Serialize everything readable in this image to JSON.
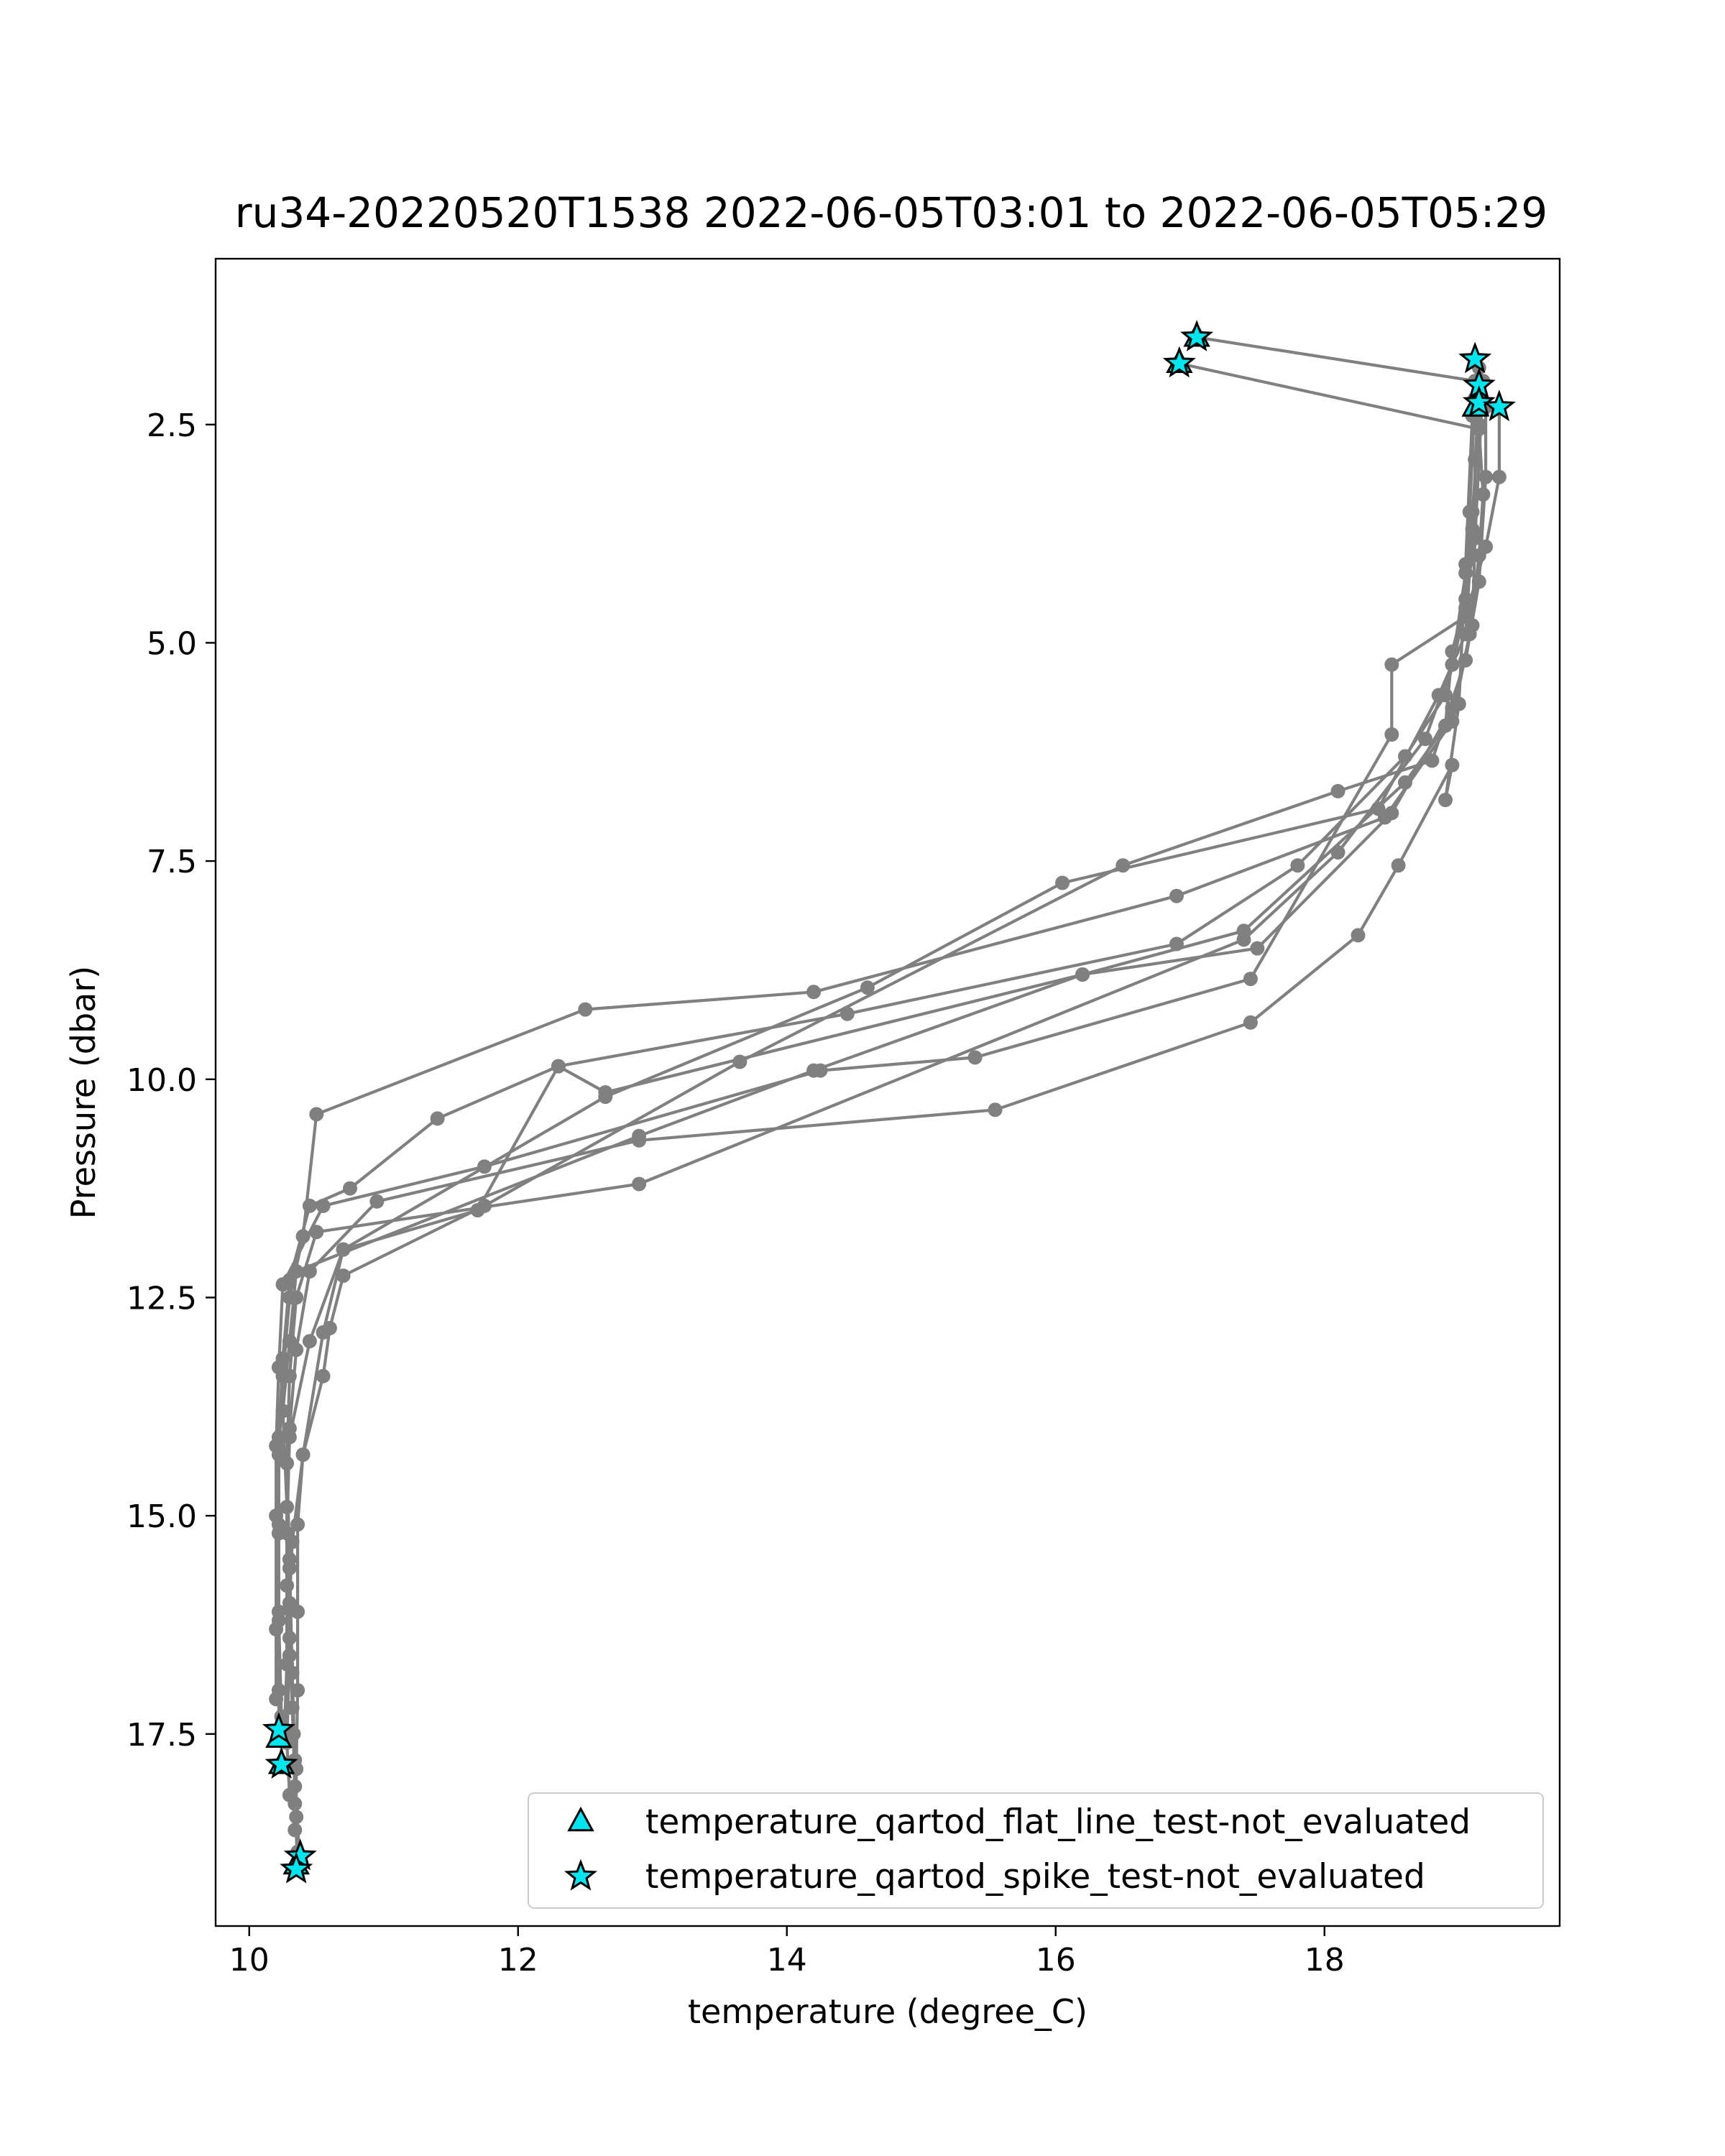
{
  "chart_data": {
    "type": "scatter",
    "title": "ru34-20220520T1538 2022-06-05T03:01 to 2022-06-05T05:29",
    "xlabel": "temperature (degree_C)",
    "ylabel": "Pressure (dbar)",
    "xlim": [
      9.75,
      19.75
    ],
    "ylim": [
      19.7,
      0.6
    ],
    "y_inverted": true,
    "x_ticks": [
      10,
      12,
      14,
      16,
      18
    ],
    "x_tick_labels": [
      "10",
      "12",
      "14",
      "16",
      "18"
    ],
    "y_ticks": [
      2.5,
      5.0,
      7.5,
      10.0,
      12.5,
      15.0,
      17.5
    ],
    "y_tick_labels": [
      "2.5",
      "5.0",
      "7.5",
      "10.0",
      "12.5",
      "15.0",
      "17.5"
    ],
    "grid": false,
    "legend_position": "bottom-right",
    "colors": {
      "profile": "#808080",
      "flag_fill": "#00e5ee",
      "flag_edge": "#000000"
    },
    "series": [
      {
        "kind": "line-points",
        "points": [
          [
            17.05,
            1.5
          ],
          [
            19.12,
            2.0
          ],
          [
            19.15,
            2.5
          ],
          [
            19.1,
            3.5
          ],
          [
            19.05,
            4.6
          ],
          [
            18.9,
            5.6
          ],
          [
            18.6,
            6.3
          ],
          [
            17.8,
            7.55
          ],
          [
            16.9,
            8.45
          ],
          [
            14.45,
            9.25
          ],
          [
            12.3,
            9.85
          ],
          [
            11.4,
            10.45
          ],
          [
            10.75,
            11.25
          ],
          [
            10.45,
            11.45
          ],
          [
            10.3,
            12.3
          ],
          [
            10.25,
            13.2
          ],
          [
            10.22,
            14.1
          ],
          [
            10.22,
            15.1
          ],
          [
            10.22,
            16.1
          ],
          [
            10.22,
            17.0
          ],
          [
            10.22,
            17.45
          ]
        ]
      },
      {
        "kind": "line-points",
        "points": [
          [
            16.92,
            1.8
          ],
          [
            19.15,
            2.55
          ],
          [
            19.18,
            3.3
          ],
          [
            19.15,
            4.0
          ],
          [
            19.08,
            4.9
          ],
          [
            18.95,
            5.9
          ],
          [
            18.45,
            7.0
          ],
          [
            16.9,
            7.9
          ],
          [
            14.2,
            9.0
          ],
          [
            12.5,
            9.2
          ],
          [
            10.5,
            10.4
          ],
          [
            10.4,
            11.8
          ],
          [
            10.3,
            12.5
          ],
          [
            10.25,
            13.4
          ],
          [
            10.22,
            14.3
          ],
          [
            10.22,
            15.2
          ],
          [
            10.22,
            16.2
          ],
          [
            10.24,
            17.3
          ],
          [
            10.24,
            17.85
          ]
        ]
      },
      {
        "kind": "line-points",
        "points": [
          [
            19.15,
            1.85
          ],
          [
            19.2,
            2.3
          ],
          [
            19.2,
            3.1
          ],
          [
            19.15,
            4.3
          ],
          [
            19.05,
            5.2
          ],
          [
            18.8,
            6.35
          ],
          [
            18.1,
            6.7
          ],
          [
            16.5,
            7.55
          ],
          [
            13.65,
            9.8
          ],
          [
            11.75,
            11.45
          ],
          [
            10.7,
            12.25
          ],
          [
            10.6,
            12.85
          ],
          [
            10.55,
            13.4
          ],
          [
            10.4,
            14.3
          ],
          [
            10.36,
            15.1
          ],
          [
            10.36,
            16.1
          ],
          [
            10.36,
            17.0
          ],
          [
            10.35,
            17.9
          ],
          [
            10.35,
            18.45
          ],
          [
            10.38,
            18.9
          ]
        ]
      },
      {
        "kind": "line-points",
        "points": [
          [
            19.3,
            2.3
          ],
          [
            19.3,
            3.1
          ],
          [
            19.2,
            3.9
          ],
          [
            19.05,
            4.7
          ],
          [
            18.5,
            5.25
          ],
          [
            18.5,
            6.05
          ],
          [
            17.45,
            8.85
          ],
          [
            15.4,
            9.75
          ],
          [
            14.25,
            9.9
          ],
          [
            11.75,
            11.0
          ],
          [
            10.55,
            11.45
          ],
          [
            10.25,
            12.35
          ],
          [
            10.22,
            13.3
          ],
          [
            10.2,
            14.2
          ],
          [
            10.2,
            15.0
          ],
          [
            10.2,
            16.3
          ],
          [
            10.2,
            17.1
          ]
        ]
      },
      {
        "kind": "line-points",
        "points": [
          [
            19.15,
            2.05
          ],
          [
            19.1,
            3.7
          ],
          [
            19.05,
            4.9
          ],
          [
            18.85,
            5.6
          ],
          [
            18.4,
            6.9
          ],
          [
            16.05,
            7.75
          ],
          [
            14.6,
            8.95
          ],
          [
            12.65,
            10.2
          ],
          [
            10.7,
            11.95
          ],
          [
            10.45,
            13.0
          ],
          [
            10.3,
            14.1
          ],
          [
            10.28,
            15.2
          ],
          [
            10.3,
            16.4
          ],
          [
            10.33,
            17.5
          ],
          [
            10.34,
            18.3
          ],
          [
            10.36,
            19.0
          ]
        ]
      },
      {
        "kind": "line-points",
        "points": [
          [
            19.15,
            2.25
          ],
          [
            19.12,
            2.9
          ],
          [
            19.12,
            3.8
          ],
          [
            19.1,
            4.8
          ],
          [
            18.95,
            5.75
          ],
          [
            18.5,
            6.95
          ],
          [
            17.5,
            8.5
          ],
          [
            16.2,
            8.8
          ],
          [
            14.2,
            9.9
          ],
          [
            12.9,
            10.65
          ],
          [
            10.35,
            12.2
          ],
          [
            10.3,
            13.0
          ],
          [
            10.25,
            13.8
          ],
          [
            10.3,
            15.6
          ],
          [
            10.3,
            16.6
          ],
          [
            10.28,
            17.6
          ],
          [
            10.3,
            18.2
          ]
        ]
      },
      {
        "kind": "line-points",
        "points": [
          [
            19.12,
            2.2
          ],
          [
            19.08,
            3.5
          ],
          [
            19.05,
            4.2
          ],
          [
            18.95,
            5.25
          ],
          [
            18.75,
            6.1
          ],
          [
            18.1,
            7.4
          ],
          [
            17.4,
            8.4
          ],
          [
            12.9,
            11.2
          ],
          [
            10.5,
            11.75
          ],
          [
            10.35,
            12.5
          ],
          [
            10.3,
            13.4
          ],
          [
            10.28,
            14.4
          ],
          [
            10.3,
            15.5
          ],
          [
            10.32,
            16.8
          ],
          [
            10.34,
            17.8
          ],
          [
            10.34,
            18.6
          ]
        ]
      },
      {
        "kind": "line-points",
        "points": [
          [
            19.1,
            2.4
          ],
          [
            19.05,
            4.1
          ],
          [
            19.0,
            5.7
          ],
          [
            18.9,
            6.8
          ],
          [
            18.95,
            6.4
          ],
          [
            18.55,
            7.55
          ],
          [
            18.25,
            8.35
          ],
          [
            17.45,
            9.35
          ],
          [
            15.55,
            10.35
          ],
          [
            12.9,
            10.7
          ],
          [
            10.95,
            11.4
          ],
          [
            10.45,
            12.2
          ],
          [
            10.35,
            13.1
          ],
          [
            10.3,
            14.0
          ],
          [
            10.28,
            14.9
          ],
          [
            10.28,
            15.8
          ],
          [
            10.28,
            16.7
          ],
          [
            10.26,
            17.55
          ]
        ]
      },
      {
        "kind": "line-points",
        "points": [
          [
            19.18,
            2.0
          ],
          [
            19.12,
            3.8
          ],
          [
            19.05,
            4.5
          ],
          [
            18.95,
            5.1
          ],
          [
            18.9,
            5.95
          ],
          [
            18.6,
            6.6
          ],
          [
            17.4,
            8.3
          ],
          [
            16.2,
            8.8
          ],
          [
            12.65,
            10.15
          ],
          [
            12.3,
            9.85
          ],
          [
            11.7,
            11.5
          ],
          [
            10.7,
            11.95
          ],
          [
            10.55,
            12.9
          ],
          [
            10.4,
            14.3
          ],
          [
            10.32,
            15.3
          ],
          [
            10.3,
            16.0
          ],
          [
            10.32,
            17.2
          ],
          [
            10.34,
            18.1
          ],
          [
            10.36,
            18.85
          ]
        ]
      }
    ],
    "flags": [
      {
        "name": "temperature_qartod_flat_line_test-not_evaluated",
        "marker": "triangle",
        "points": [
          [
            17.05,
            1.5
          ],
          [
            16.92,
            1.8
          ],
          [
            19.12,
            2.3
          ],
          [
            10.22,
            17.55
          ],
          [
            10.24,
            17.85
          ],
          [
            10.35,
            19.0
          ]
        ]
      },
      {
        "name": "temperature_qartod_spike_test-not_evaluated",
        "marker": "star",
        "points": [
          [
            17.05,
            1.5
          ],
          [
            16.92,
            1.8
          ],
          [
            19.12,
            1.75
          ],
          [
            19.15,
            2.05
          ],
          [
            19.15,
            2.25
          ],
          [
            19.3,
            2.3
          ],
          [
            10.22,
            17.45
          ],
          [
            10.24,
            17.85
          ],
          [
            10.38,
            18.9
          ],
          [
            10.35,
            19.05
          ]
        ]
      }
    ]
  }
}
